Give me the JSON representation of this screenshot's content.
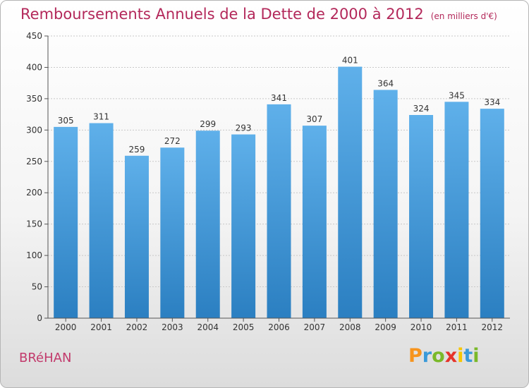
{
  "title": "Remboursements Annuels de la Dette de 2000 à 2012",
  "subtitle": "(en milliers d'€)",
  "city": "BRéHAN",
  "logo": {
    "letters": [
      "P",
      "r",
      "o",
      "x",
      "i",
      "t",
      "i"
    ],
    "colors": [
      "#f7941d",
      "#3a9ad9",
      "#7ab929",
      "#e6332a",
      "#f7c600",
      "#3a9ad9",
      "#7ab929"
    ]
  },
  "colors": {
    "bar_light": "#5fb0ea",
    "bar_dark": "#2b7fc1",
    "axis": "#555555",
    "grid": "#c8c8c8",
    "text": "#333333"
  },
  "chart_data": {
    "type": "bar",
    "categories": [
      "2000",
      "2001",
      "2002",
      "2003",
      "2004",
      "2005",
      "2006",
      "2007",
      "2008",
      "2009",
      "2010",
      "2011",
      "2012"
    ],
    "values": [
      305,
      311,
      259,
      272,
      299,
      293,
      341,
      307,
      401,
      364,
      324,
      345,
      334
    ],
    "ylim": [
      0,
      450
    ],
    "yticks": [
      0,
      50,
      100,
      150,
      200,
      250,
      300,
      350,
      400,
      450
    ],
    "grid": true
  }
}
